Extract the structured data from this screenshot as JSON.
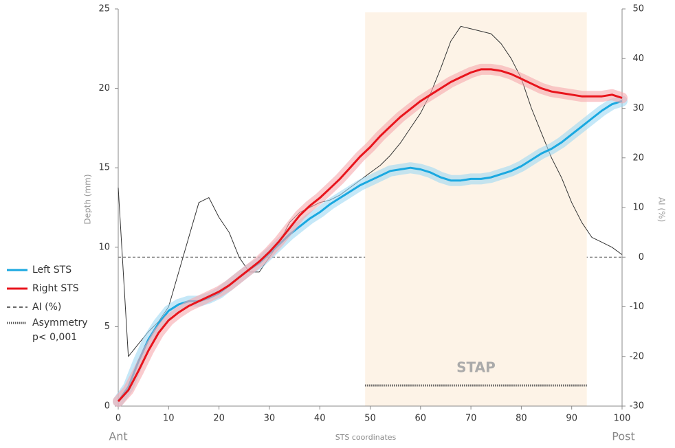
{
  "chart_data": {
    "type": "line",
    "x_label": "STS coordinates",
    "y_label": "Depth (mm)",
    "y2_label": "AI (%)",
    "x_start_label": "Ant",
    "x_end_label": "Post",
    "x": [
      0,
      2,
      4,
      6,
      8,
      10,
      12,
      14,
      16,
      18,
      20,
      22,
      24,
      26,
      28,
      30,
      32,
      34,
      36,
      38,
      40,
      42,
      44,
      46,
      48,
      50,
      52,
      54,
      56,
      58,
      60,
      62,
      64,
      66,
      68,
      70,
      72,
      74,
      76,
      78,
      80,
      82,
      84,
      86,
      88,
      90,
      92,
      94,
      96,
      98,
      100
    ],
    "series": [
      {
        "name": "Left STS",
        "color": "#1aa8e0",
        "glow": "#9ed8f4",
        "values": [
          0.3,
          1.2,
          2.8,
          4.2,
          5.2,
          6.0,
          6.4,
          6.6,
          6.6,
          6.8,
          7.1,
          7.6,
          8.1,
          8.6,
          9.0,
          9.6,
          10.2,
          10.8,
          11.3,
          11.8,
          12.2,
          12.7,
          13.1,
          13.5,
          13.9,
          14.2,
          14.5,
          14.8,
          14.9,
          15.0,
          14.9,
          14.7,
          14.4,
          14.2,
          14.2,
          14.3,
          14.3,
          14.4,
          14.6,
          14.8,
          15.1,
          15.5,
          15.9,
          16.2,
          16.6,
          17.1,
          17.6,
          18.1,
          18.6,
          19.0,
          19.2
        ]
      },
      {
        "name": "Right STS",
        "color": "#e8141c",
        "glow": "#f6a9ad",
        "values": [
          0.3,
          1.0,
          2.2,
          3.5,
          4.6,
          5.4,
          5.9,
          6.3,
          6.6,
          6.9,
          7.2,
          7.6,
          8.1,
          8.6,
          9.1,
          9.7,
          10.4,
          11.2,
          12.0,
          12.6,
          13.1,
          13.7,
          14.3,
          15.0,
          15.7,
          16.3,
          17.0,
          17.6,
          18.2,
          18.7,
          19.2,
          19.6,
          20.0,
          20.4,
          20.7,
          21.0,
          21.2,
          21.2,
          21.1,
          20.9,
          20.6,
          20.3,
          20.0,
          19.8,
          19.7,
          19.6,
          19.5,
          19.5,
          19.5,
          19.6,
          19.4
        ]
      },
      {
        "name": "AI (%)",
        "color": "#333333",
        "axis": "y2",
        "legend_style": "dashed",
        "values": [
          14,
          -20,
          -17.5,
          -15,
          -13,
          -10,
          -3,
          4,
          11,
          12,
          8,
          5,
          0,
          -3,
          -3,
          0,
          3,
          7,
          9,
          10,
          11,
          11.5,
          12.5,
          14,
          15.5,
          17,
          18.5,
          20.5,
          23,
          26,
          29,
          33,
          38,
          43.5,
          46.5,
          46,
          45.5,
          45,
          43,
          40,
          36,
          30,
          25,
          20,
          16,
          11,
          7,
          4,
          3,
          2,
          0.5
        ]
      }
    ],
    "y2_reference": 0,
    "region": {
      "label": "STAP",
      "x_range": [
        49,
        93
      ],
      "color": "#fdf3e7"
    },
    "asymmetry": {
      "label_lines": [
        "Asymmetry",
        "p< 0,001"
      ],
      "y": 1.3,
      "x_range": [
        49,
        93
      ]
    },
    "xlim": [
      0,
      100
    ],
    "xticks": [
      0,
      10,
      20,
      30,
      40,
      50,
      60,
      70,
      80,
      90,
      100
    ],
    "ylim": [
      0,
      25
    ],
    "yticks": [
      0,
      5,
      10,
      15,
      20,
      25
    ],
    "y2lim": [
      -30,
      50
    ],
    "y2ticks": [
      -30,
      -20,
      -10,
      0,
      10,
      20,
      30,
      40,
      50
    ]
  }
}
